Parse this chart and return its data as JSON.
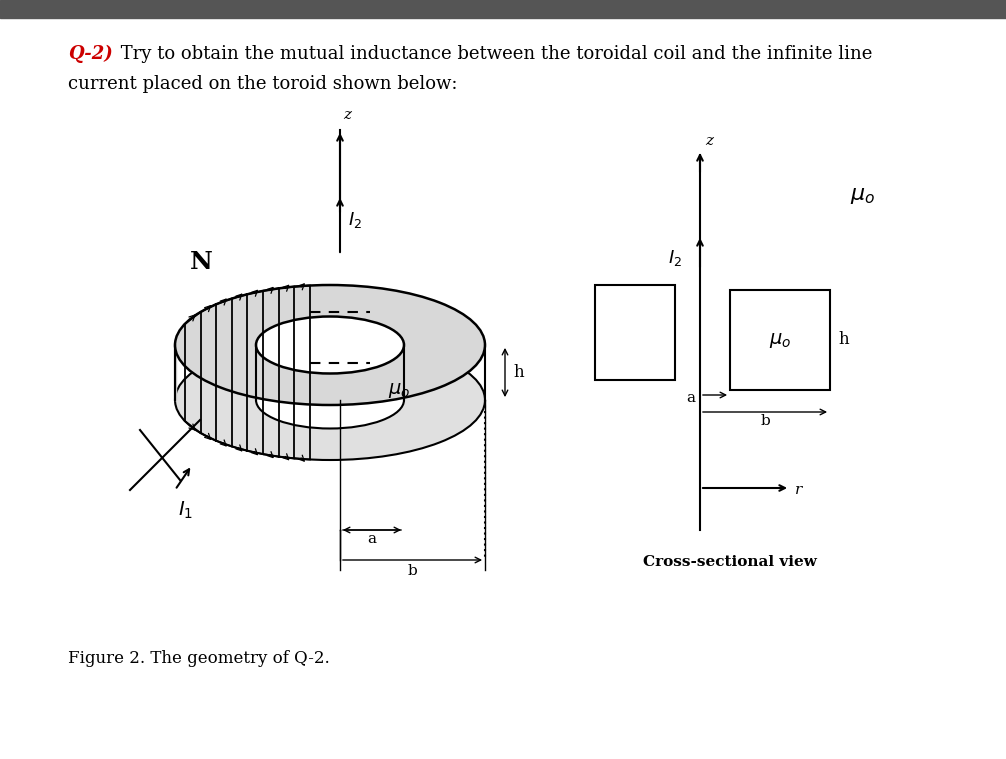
{
  "title_q": "Q-2)",
  "title_rest": " Try to obtain the mutual inductance between the toroidal coil and the infinite line",
  "title_line2": "current placed on the toroid shown below:",
  "title_color": "#cc0000",
  "text_color": "#000000",
  "fig_caption": "Figure 2. The geometry of Q-2.",
  "bg_color": "#ffffff",
  "page_bg": "#f0f0f0",
  "topbar_color": "#555555"
}
